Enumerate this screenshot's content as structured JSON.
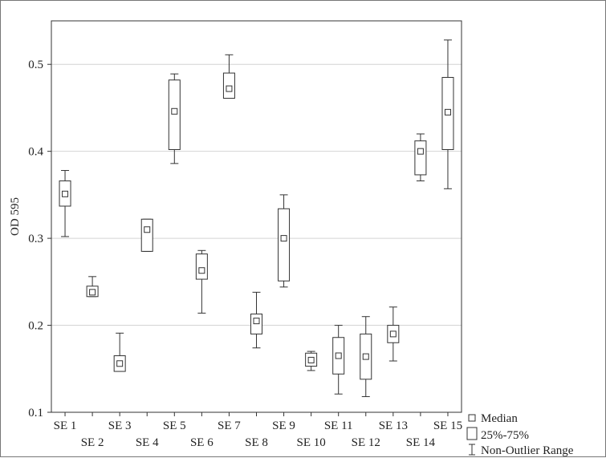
{
  "chart_data": {
    "type": "box",
    "ylabel": "OD 595",
    "ylim": [
      0.1,
      0.55
    ],
    "yticks": [
      "0.1",
      "0.2",
      "0.3",
      "0.4",
      "0.5"
    ],
    "grid": "horizontal",
    "legend_placement": "bottom-right",
    "legend": {
      "median": "Median",
      "box": "25%-75%",
      "whisker": "Non-Outlier Range"
    },
    "categories": [
      "SE 1",
      "SE 2",
      "SE 3",
      "SE 4",
      "SE 5",
      "SE 6",
      "SE 7",
      "SE 8",
      "SE 9",
      "SE 10",
      "SE 11",
      "SE 12",
      "SE 13",
      "SE 14",
      "SE 15"
    ],
    "series": [
      {
        "min": 0.302,
        "q1": 0.337,
        "median": 0.351,
        "q3": 0.366,
        "max": 0.378
      },
      {
        "min": 0.233,
        "q1": 0.233,
        "median": 0.238,
        "q3": 0.245,
        "max": 0.256
      },
      {
        "min": 0.147,
        "q1": 0.147,
        "median": 0.156,
        "q3": 0.165,
        "max": 0.191
      },
      {
        "min": 0.285,
        "q1": 0.285,
        "median": 0.31,
        "q3": 0.322,
        "max": 0.322
      },
      {
        "min": 0.386,
        "q1": 0.402,
        "median": 0.446,
        "q3": 0.482,
        "max": 0.489
      },
      {
        "min": 0.214,
        "q1": 0.253,
        "median": 0.263,
        "q3": 0.282,
        "max": 0.286
      },
      {
        "min": 0.461,
        "q1": 0.461,
        "median": 0.472,
        "q3": 0.49,
        "max": 0.511
      },
      {
        "min": 0.174,
        "q1": 0.19,
        "median": 0.205,
        "q3": 0.213,
        "max": 0.238
      },
      {
        "min": 0.244,
        "q1": 0.251,
        "median": 0.3,
        "q3": 0.334,
        "max": 0.35
      },
      {
        "min": 0.148,
        "q1": 0.153,
        "median": 0.16,
        "q3": 0.168,
        "max": 0.17
      },
      {
        "min": 0.121,
        "q1": 0.144,
        "median": 0.165,
        "q3": 0.186,
        "max": 0.2
      },
      {
        "min": 0.118,
        "q1": 0.138,
        "median": 0.164,
        "q3": 0.19,
        "max": 0.21
      },
      {
        "min": 0.159,
        "q1": 0.18,
        "median": 0.19,
        "q3": 0.2,
        "max": 0.221
      },
      {
        "min": 0.366,
        "q1": 0.373,
        "median": 0.4,
        "q3": 0.412,
        "max": 0.42
      },
      {
        "min": 0.357,
        "q1": 0.402,
        "median": 0.445,
        "q3": 0.485,
        "max": 0.528
      }
    ]
  }
}
